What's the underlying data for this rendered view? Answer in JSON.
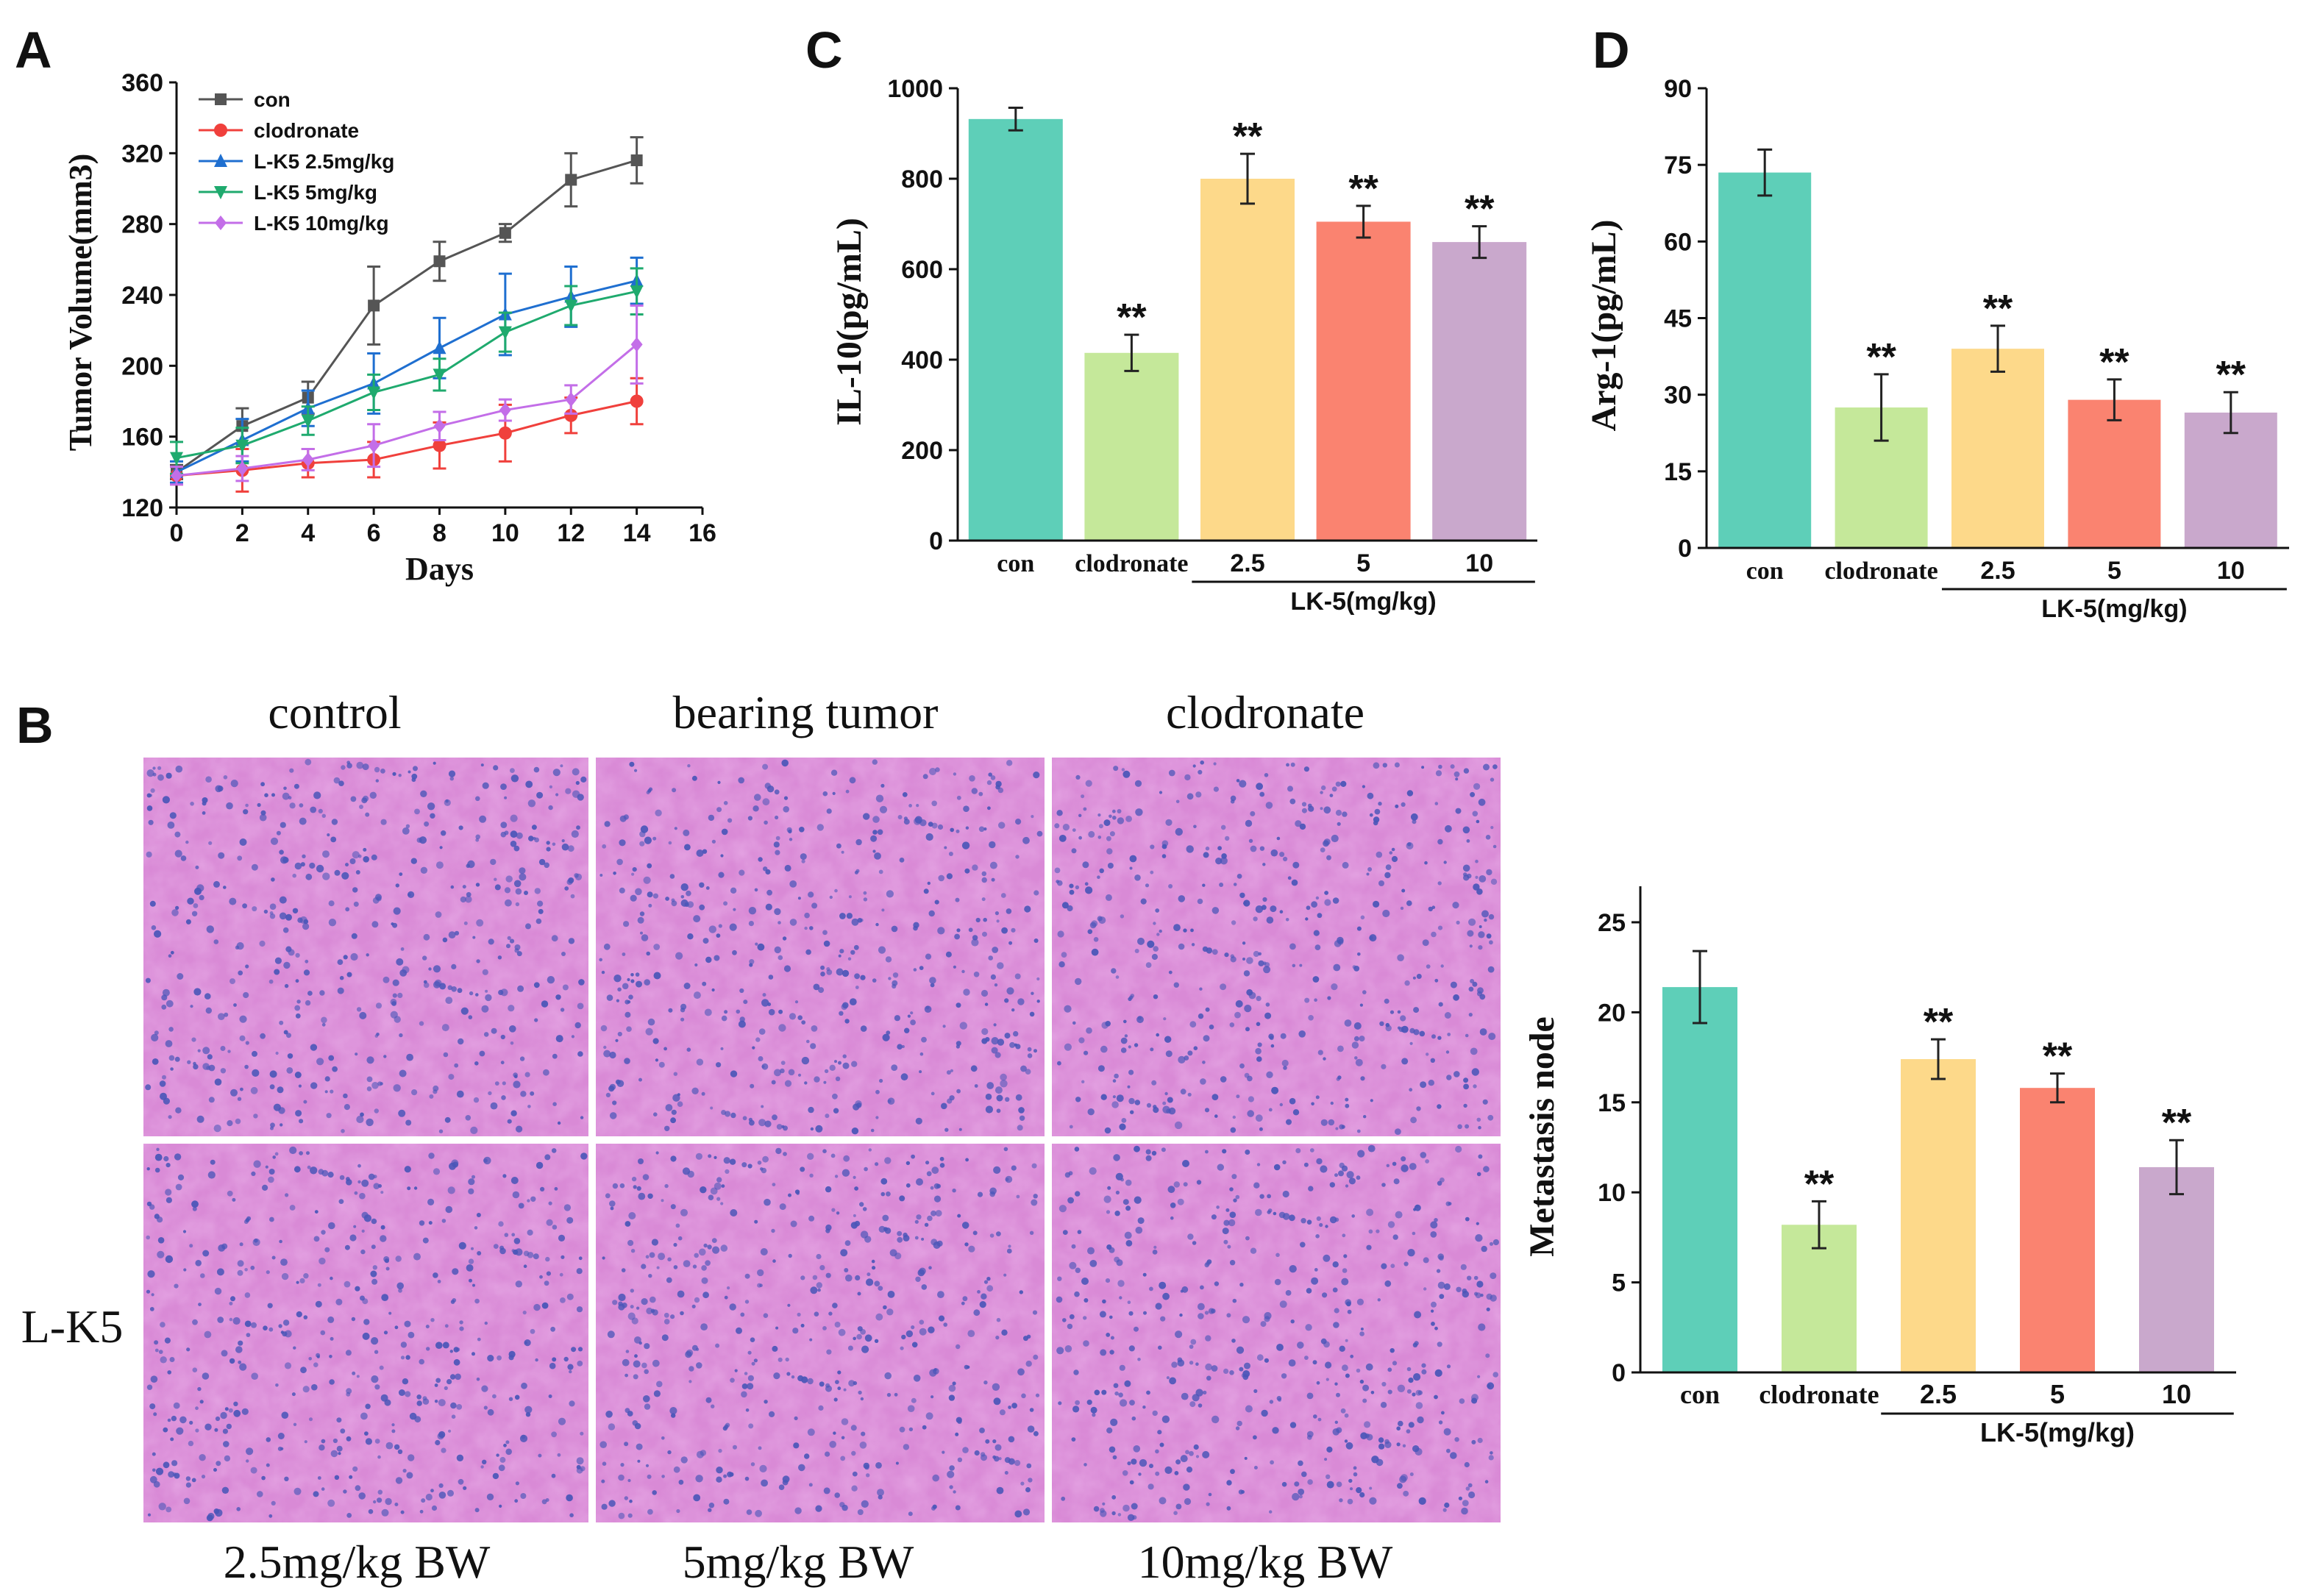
{
  "chart_data": [
    {
      "panel": "A",
      "type": "line",
      "xlabel": "Days",
      "ylabel": "Tumor Volume(mm3)",
      "xlim": [
        0,
        16
      ],
      "ylim": [
        120,
        360
      ],
      "xticks": [
        0,
        2,
        4,
        6,
        8,
        10,
        12,
        14,
        16
      ],
      "yticks": [
        120,
        160,
        200,
        240,
        280,
        320,
        360
      ],
      "legend_position": "top-left",
      "x": [
        0,
        2,
        4,
        6,
        8,
        10,
        12,
        14
      ],
      "series": [
        {
          "name": "con",
          "color": "#555555",
          "marker": "square",
          "values": [
            140,
            166,
            182,
            234,
            259,
            275,
            305,
            316
          ],
          "errors": [
            4,
            10,
            9,
            22,
            11,
            5,
            15,
            13
          ]
        },
        {
          "name": "clodronate",
          "color": "#f0403c",
          "marker": "circle",
          "values": [
            138,
            141,
            145,
            147,
            155,
            162,
            172,
            180
          ],
          "errors": [
            5,
            12,
            8,
            10,
            13,
            16,
            10,
            13
          ]
        },
        {
          "name": "L-K5 2.5mg/kg",
          "color": "#1f6fd0",
          "marker": "triangle-up",
          "values": [
            140,
            158,
            176,
            190,
            210,
            229,
            239,
            248
          ],
          "errors": [
            6,
            12,
            10,
            17,
            17,
            23,
            17,
            13
          ]
        },
        {
          "name": "L-K5 5mg/kg",
          "color": "#1faa6e",
          "marker": "triangle-down",
          "values": [
            148,
            155,
            169,
            185,
            195,
            219,
            234,
            242
          ],
          "errors": [
            9,
            10,
            8,
            10,
            9,
            11,
            11,
            13
          ]
        },
        {
          "name": "L-K5 10mg/kg",
          "color": "#c36ee8",
          "marker": "diamond",
          "values": [
            138,
            142,
            147,
            155,
            166,
            175,
            181,
            212
          ],
          "errors": [
            5,
            7,
            6,
            12,
            8,
            6,
            8,
            22
          ]
        }
      ]
    },
    {
      "panel": "C",
      "type": "bar",
      "ylabel": "IL-10(pg/mL)",
      "ylim": [
        0,
        1000
      ],
      "yticks": [
        0,
        200,
        400,
        600,
        800,
        1000
      ],
      "categories": [
        "con",
        "clodronate",
        "2.5",
        "5",
        "10"
      ],
      "group_label": "LK-5(mg/kg)",
      "values": [
        932,
        415,
        800,
        705,
        660
      ],
      "errors": [
        25,
        40,
        55,
        35,
        35
      ],
      "significance": [
        "",
        "**",
        "**",
        "**",
        "**"
      ],
      "colors": [
        "#5ecfb8",
        "#c5e89a",
        "#fdd98a",
        "#fa8370",
        "#c9a8cc"
      ]
    },
    {
      "panel": "D",
      "type": "bar",
      "ylabel": "Arg-1(pg/mL)",
      "ylim": [
        0,
        90
      ],
      "yticks": [
        0,
        15,
        30,
        45,
        60,
        75,
        90
      ],
      "categories": [
        "con",
        "clodronate",
        "2.5",
        "5",
        "10"
      ],
      "group_label": "LK-5(mg/kg)",
      "values": [
        73.5,
        27.5,
        39,
        29,
        26.5
      ],
      "errors": [
        4.5,
        6.5,
        4.5,
        4,
        4
      ],
      "significance": [
        "",
        "**",
        "**",
        "**",
        "**"
      ],
      "colors": [
        "#5ecfb8",
        "#c5e89a",
        "#fdd98a",
        "#fa8370",
        "#c9a8cc"
      ]
    },
    {
      "panel": "B-right",
      "type": "bar",
      "ylabel": "Metastasis node",
      "ylim": [
        0,
        27
      ],
      "yticks": [
        0,
        5,
        10,
        15,
        20,
        25
      ],
      "categories": [
        "con",
        "clodronate",
        "2.5",
        "5",
        "10"
      ],
      "group_label": "LK-5(mg/kg)",
      "values": [
        21.4,
        8.2,
        17.4,
        15.8,
        11.4
      ],
      "errors": [
        2.0,
        1.3,
        1.1,
        0.8,
        1.5
      ],
      "significance": [
        "",
        "**",
        "**",
        "**",
        "**"
      ],
      "colors": [
        "#5ecfb8",
        "#c5e89a",
        "#fdd98a",
        "#fa8370",
        "#c9a8cc"
      ]
    }
  ],
  "labels": {
    "panel_a": "A",
    "panel_b": "B",
    "panel_c": "C",
    "panel_d": "D"
  },
  "histology": {
    "top_labels": [
      "control",
      "bearing tumor",
      "clodronate"
    ],
    "side_label": "L-K5",
    "bottom_labels": [
      "2.5mg/kg BW",
      "5mg/kg BW",
      "10mg/kg BW"
    ],
    "tissue_color_base": "#d98ad6",
    "nucleus_color": "#4a56b8"
  }
}
